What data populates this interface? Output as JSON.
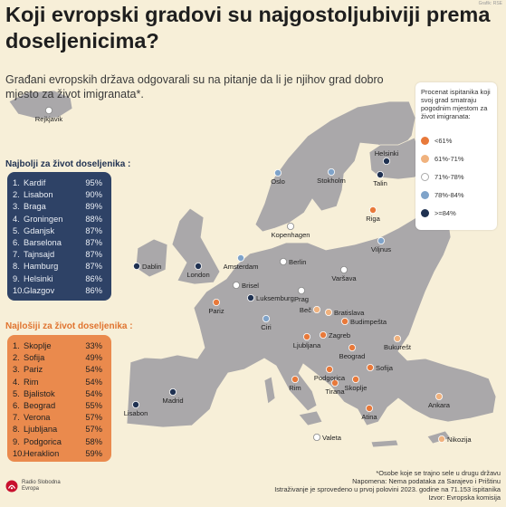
{
  "title": "Koji evropski gradovi su najgostoljubiviji prema doseljenicima?",
  "subtitle": "Građani evropskih država odgovarali su na pitanje da li je njihov grad dobro mjesto za život imigranata*.",
  "corner_note": "Grafik: RSE",
  "legend": {
    "title": "Procenat ispitanika koji svoj grad smatraju pogodnim mjestom za život imigranata:",
    "items": [
      {
        "label": "<61%",
        "color": "#e8793a"
      },
      {
        "label": "61%-71%",
        "color": "#f0b27e"
      },
      {
        "label": "71%-78%",
        "color": "#ffffff"
      },
      {
        "label": "78%-84%",
        "color": "#7fa3c9"
      },
      {
        "label": ">=84%",
        "color": "#1f3151"
      }
    ]
  },
  "best": {
    "heading": "Najbolji za život doseljenika :",
    "items": [
      {
        "rank": "1.",
        "city": "Kardif",
        "pct": "95%"
      },
      {
        "rank": "2.",
        "city": "Lisabon",
        "pct": "90%"
      },
      {
        "rank": "3.",
        "city": "Braga",
        "pct": "89%"
      },
      {
        "rank": "4.",
        "city": "Groningen",
        "pct": "88%"
      },
      {
        "rank": "5.",
        "city": "Gdanjsk",
        "pct": "87%"
      },
      {
        "rank": "6.",
        "city": "Barselona",
        "pct": "87%"
      },
      {
        "rank": "7.",
        "city": "Tajnsajd",
        "pct": "87%"
      },
      {
        "rank": "8.",
        "city": "Hamburg",
        "pct": "87%"
      },
      {
        "rank": "9.",
        "city": "Helsinki",
        "pct": "86%"
      },
      {
        "rank": "10.",
        "city": "Glazgov",
        "pct": "86%"
      }
    ]
  },
  "worst": {
    "heading": "Najlošiji za život doseljenika :",
    "items": [
      {
        "rank": "1.",
        "city": "Skoplje",
        "pct": "33%"
      },
      {
        "rank": "2.",
        "city": "Sofija",
        "pct": "49%"
      },
      {
        "rank": "3.",
        "city": "Pariz",
        "pct": "54%"
      },
      {
        "rank": "4.",
        "city": "Rim",
        "pct": "54%"
      },
      {
        "rank": "5.",
        "city": "Bjalistok",
        "pct": "54%"
      },
      {
        "rank": "6.",
        "city": "Beograd",
        "pct": "55%"
      },
      {
        "rank": "7.",
        "city": "Verona",
        "pct": "57%"
      },
      {
        "rank": "8.",
        "city": "Ljubljana",
        "pct": "57%"
      },
      {
        "rank": "9.",
        "city": "Podgorica",
        "pct": "58%"
      },
      {
        "rank": "10.",
        "city": "Heraklion",
        "pct": "59%"
      }
    ]
  },
  "cities": [
    {
      "name": "Rejkjavik",
      "category": "71%-78%"
    },
    {
      "name": "Helsinki",
      "category": ">=84%"
    },
    {
      "name": "Oslo",
      "category": "78%-84%"
    },
    {
      "name": "Stokholm",
      "category": "78%-84%"
    },
    {
      "name": "Talin",
      "category": ">=84%"
    },
    {
      "name": "Riga",
      "category": "<61%"
    },
    {
      "name": "Kopenhagen",
      "category": "71%-78%"
    },
    {
      "name": "Viljnus",
      "category": "78%-84%"
    },
    {
      "name": "Dablin",
      "category": ">=84%"
    },
    {
      "name": "London",
      "category": ">=84%"
    },
    {
      "name": "Amsterdam",
      "category": "78%-84%"
    },
    {
      "name": "Berlin",
      "category": "71%-78%"
    },
    {
      "name": "Varšava",
      "category": "71%-78%"
    },
    {
      "name": "Brisel",
      "category": "71%-78%"
    },
    {
      "name": "Luksemburg",
      "category": ">=84%"
    },
    {
      "name": "Prag",
      "category": "71%-78%"
    },
    {
      "name": "Pariz",
      "category": "<61%"
    },
    {
      "name": "Beč",
      "category": "61%-71%"
    },
    {
      "name": "Bratislava",
      "category": "61%-71%"
    },
    {
      "name": "Budimpešta",
      "category": "<61%"
    },
    {
      "name": "Ciri",
      "category": "78%-84%"
    },
    {
      "name": "Ljubljana",
      "category": "<61%"
    },
    {
      "name": "Zagreb",
      "category": "<61%"
    },
    {
      "name": "Beograd",
      "category": "<61%"
    },
    {
      "name": "Bukurešt",
      "category": "61%-71%"
    },
    {
      "name": "Sofija",
      "category": "<61%"
    },
    {
      "name": "Podgorica",
      "category": "<61%"
    },
    {
      "name": "Rim",
      "category": "<61%"
    },
    {
      "name": "Tirana",
      "category": "<61%"
    },
    {
      "name": "Skoplje",
      "category": "<61%"
    },
    {
      "name": "Atina",
      "category": "<61%"
    },
    {
      "name": "Ankara",
      "category": "61%-71%"
    },
    {
      "name": "Madrid",
      "category": ">=84%"
    },
    {
      "name": "Lisabon",
      "category": ">=84%"
    },
    {
      "name": "Valeta",
      "category": "71%-78%"
    },
    {
      "name": "Nikozija",
      "category": "61%-71%"
    }
  ],
  "footnotes": [
    "*Osobe koje se trajno sele u drugu državu",
    "Napomena: Nema podataka za Sarajevo i Prištinu",
    "Istraživanje je sprovedeno u prvoj polovini 2023. godine na 71.153 ispitanika",
    "Izvor: Evropska komisija"
  ],
  "logo": {
    "line1": "Radio Slobodna",
    "line2": "Evropa"
  }
}
